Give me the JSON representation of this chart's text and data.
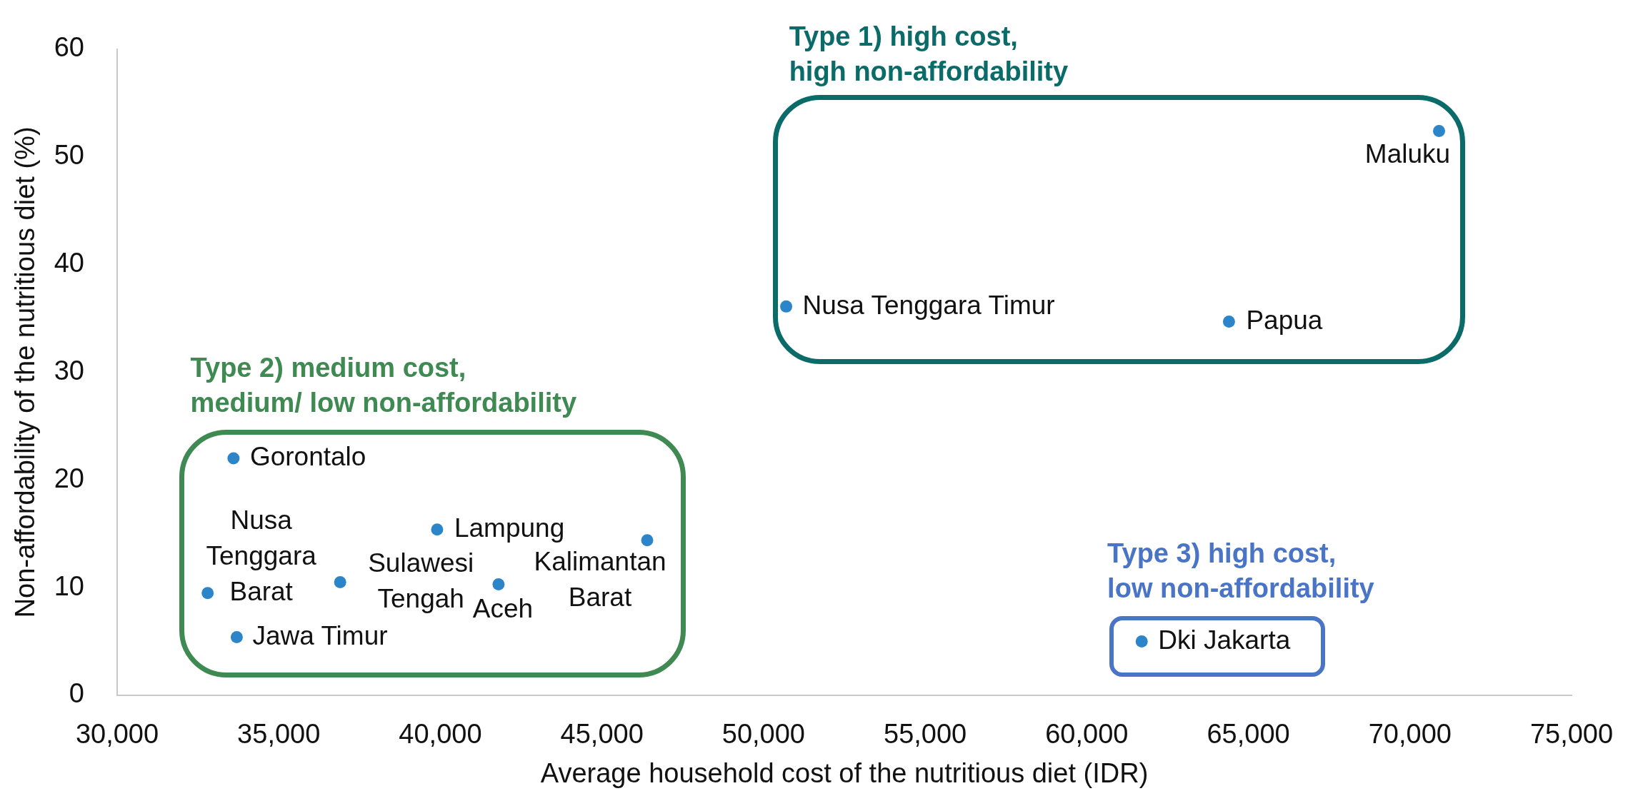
{
  "chart_data": {
    "type": "scatter",
    "xlabel": "Average household cost of the nutritious diet (IDR)",
    "ylabel": "Non-affordability of the nutritious diet (%)",
    "x": [
      70900,
      50700,
      64400,
      33600,
      32800,
      33700,
      36900,
      39900,
      41800,
      46400,
      61700
    ],
    "values": [
      52.4,
      36.1,
      34.7,
      22.0,
      9.5,
      5.4,
      10.5,
      15.4,
      10.3,
      14.4,
      5.0
    ],
    "color": "#2c85c8",
    "marker": "circle",
    "xlim": [
      30000,
      75000
    ],
    "xticks": [
      {
        "value": 30000,
        "label": "30,000"
      },
      {
        "value": 35000,
        "label": "35,000"
      },
      {
        "value": 40000,
        "label": "40,000"
      },
      {
        "value": 45000,
        "label": "45,000"
      },
      {
        "value": 50000,
        "label": "50,000"
      },
      {
        "value": 55000,
        "label": "55,000"
      },
      {
        "value": 60000,
        "label": "60,000"
      },
      {
        "value": 65000,
        "label": "65,000"
      },
      {
        "value": 70000,
        "label": "70,000"
      },
      {
        "value": 75000,
        "label": "75,000"
      }
    ],
    "ylim": [
      0,
      60
    ],
    "yticks": [
      0,
      10,
      20,
      30,
      40,
      50,
      60
    ],
    "annotations": [
      "Type 1) high cost,\nhigh non-affordability",
      "Type 2) medium cost,\nmedium/ low non-affordability",
      "Type 3) high cost,\nlow non-affordability",
      {
        "text": "Maluku",
        "x": 70900,
        "y": 52.4
      },
      {
        "text": "Nusa Tenggara Timur",
        "x": 50700,
        "y": 36.1
      },
      {
        "text": "Papua",
        "x": 64400,
        "y": 34.7
      },
      {
        "text": "Gorontalo",
        "x": 33600,
        "y": 22.0
      },
      {
        "text": "Nusa\nTenggara\nBarat",
        "x": 32800,
        "y": 9.5
      },
      {
        "text": "Jawa Timur",
        "x": 33700,
        "y": 5.4
      },
      {
        "text": "Sulawesi\nTengah",
        "x": 36900,
        "y": 10.5
      },
      {
        "text": "Lampung",
        "x": 39900,
        "y": 15.4
      },
      {
        "text": "Aceh",
        "x": 41800,
        "y": 10.3
      },
      {
        "text": "Kalimantan\nBarat",
        "x": 46400,
        "y": 14.4
      },
      {
        "text": "Dki Jakarta",
        "x": 61700,
        "y": 5.0
      }
    ]
  }
}
